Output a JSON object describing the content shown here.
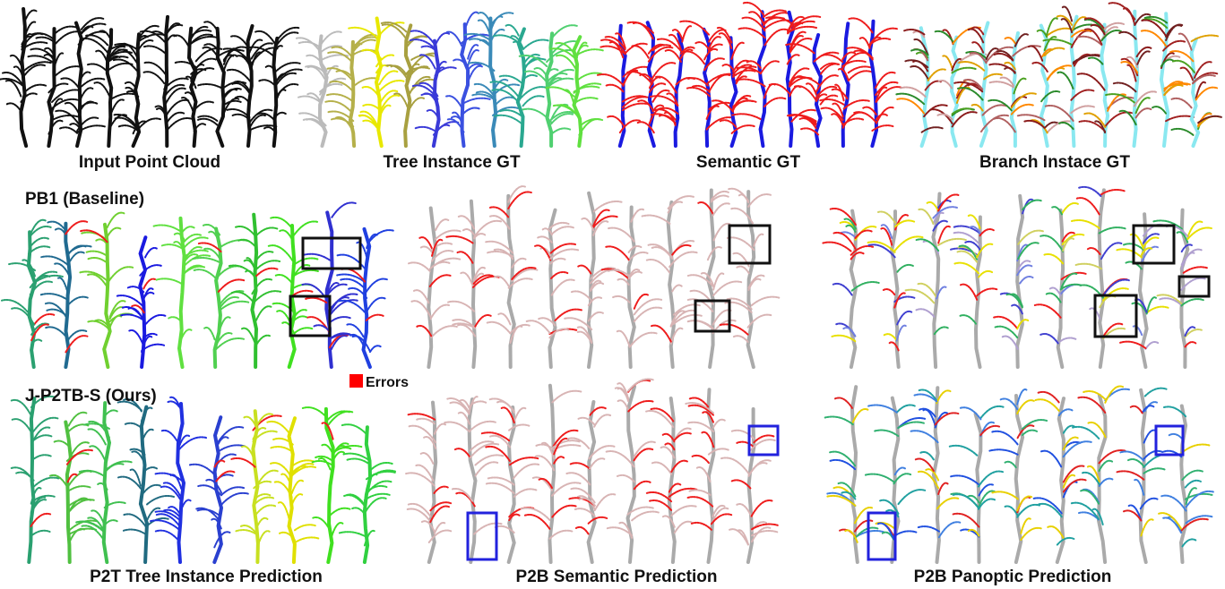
{
  "figure": {
    "row1": {
      "captions": [
        "Input Point Cloud",
        "Tree Instance GT",
        "Semantic GT",
        "Branch Instace GT"
      ]
    },
    "row2": {
      "label": "PB1 (Baseline)",
      "legend": "Errors"
    },
    "row3": {
      "label": "J-P2TB-S (Ours)",
      "captions": [
        "P2T Tree Instance Prediction",
        "P2B Semantic Prediction",
        "P2B Panoptic Prediction"
      ]
    }
  }
}
